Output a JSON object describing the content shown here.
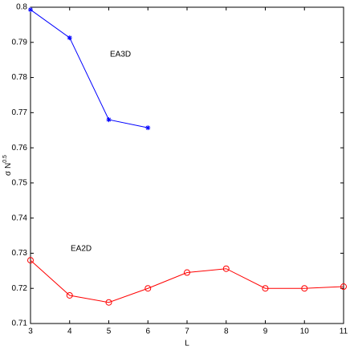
{
  "chart_data": {
    "type": "line",
    "x_label": "L",
    "y_label": {
      "base": "σ N",
      "sup": "0.5"
    },
    "x": [
      3,
      4,
      5,
      6,
      7,
      8,
      9,
      10,
      11
    ],
    "series": [
      {
        "name": "EA3D",
        "color": "#0000ff",
        "marker": "star",
        "values": [
          0.7993,
          0.7913,
          0.768,
          0.7657,
          null,
          null,
          null,
          null,
          null
        ]
      },
      {
        "name": "EA2D",
        "color": "#ff0000",
        "marker": "circle",
        "values": [
          0.728,
          0.718,
          0.716,
          0.72,
          0.7245,
          0.7256,
          0.72,
          0.72,
          0.7205
        ]
      }
    ],
    "xlim": [
      3,
      11
    ],
    "xticks": [
      3,
      4,
      5,
      6,
      7,
      8,
      9,
      10,
      11
    ],
    "ylim": [
      0.71,
      0.8
    ],
    "yticks": [
      0.71,
      0.72,
      0.73,
      0.74,
      0.75,
      0.76,
      0.77,
      0.78,
      0.79,
      0.8
    ],
    "grid": false
  }
}
